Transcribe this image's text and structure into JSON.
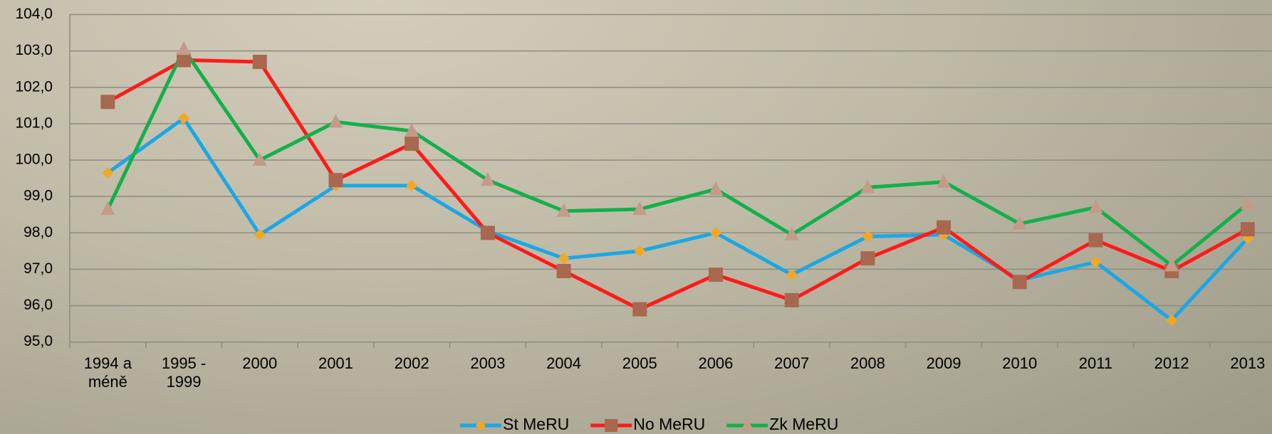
{
  "chart_data": {
    "type": "line",
    "categories": [
      "1994 a méně",
      "1995 - 1999",
      "2000",
      "2001",
      "2002",
      "2003",
      "2004",
      "2005",
      "2006",
      "2007",
      "2008",
      "2009",
      "2010",
      "2011",
      "2012",
      "2013"
    ],
    "series": [
      {
        "name": "St MeRU",
        "color": "#1aa7e6",
        "marker": "diamond",
        "marker_color": "#f5a623",
        "values": [
          99.65,
          101.15,
          97.95,
          99.3,
          99.3,
          98.05,
          97.3,
          97.5,
          98.0,
          96.85,
          97.9,
          97.95,
          96.7,
          97.2,
          95.6,
          97.85
        ]
      },
      {
        "name": "No MeRU",
        "color": "#ff1a1a",
        "marker": "square",
        "marker_color": "#a8684f",
        "values": [
          101.6,
          102.75,
          102.7,
          99.45,
          100.45,
          98.0,
          96.95,
          95.9,
          96.85,
          96.15,
          97.3,
          98.15,
          96.65,
          97.8,
          96.95,
          98.1
        ]
      },
      {
        "name": "Zk MeRU",
        "color": "#12b04a",
        "marker": "triangle",
        "marker_color": "#c49a8a",
        "values": [
          98.65,
          103.05,
          100.0,
          101.05,
          100.8,
          99.45,
          98.6,
          98.65,
          99.2,
          97.95,
          99.25,
          99.4,
          98.25,
          98.7,
          97.1,
          98.8
        ]
      }
    ],
    "ylim": [
      95,
      104
    ],
    "yticks": [
      {
        "value": 95,
        "label": "95,0"
      },
      {
        "value": 96,
        "label": "96,0"
      },
      {
        "value": 97,
        "label": "97,0"
      },
      {
        "value": 98,
        "label": "98,0"
      },
      {
        "value": 99,
        "label": "99,0"
      },
      {
        "value": 100,
        "label": "100,0"
      },
      {
        "value": 101,
        "label": "101,0"
      },
      {
        "value": 102,
        "label": "102,0"
      },
      {
        "value": 103,
        "label": "103,0"
      },
      {
        "value": 104,
        "label": "104,0"
      }
    ],
    "grid": true,
    "legend": "bottom"
  }
}
